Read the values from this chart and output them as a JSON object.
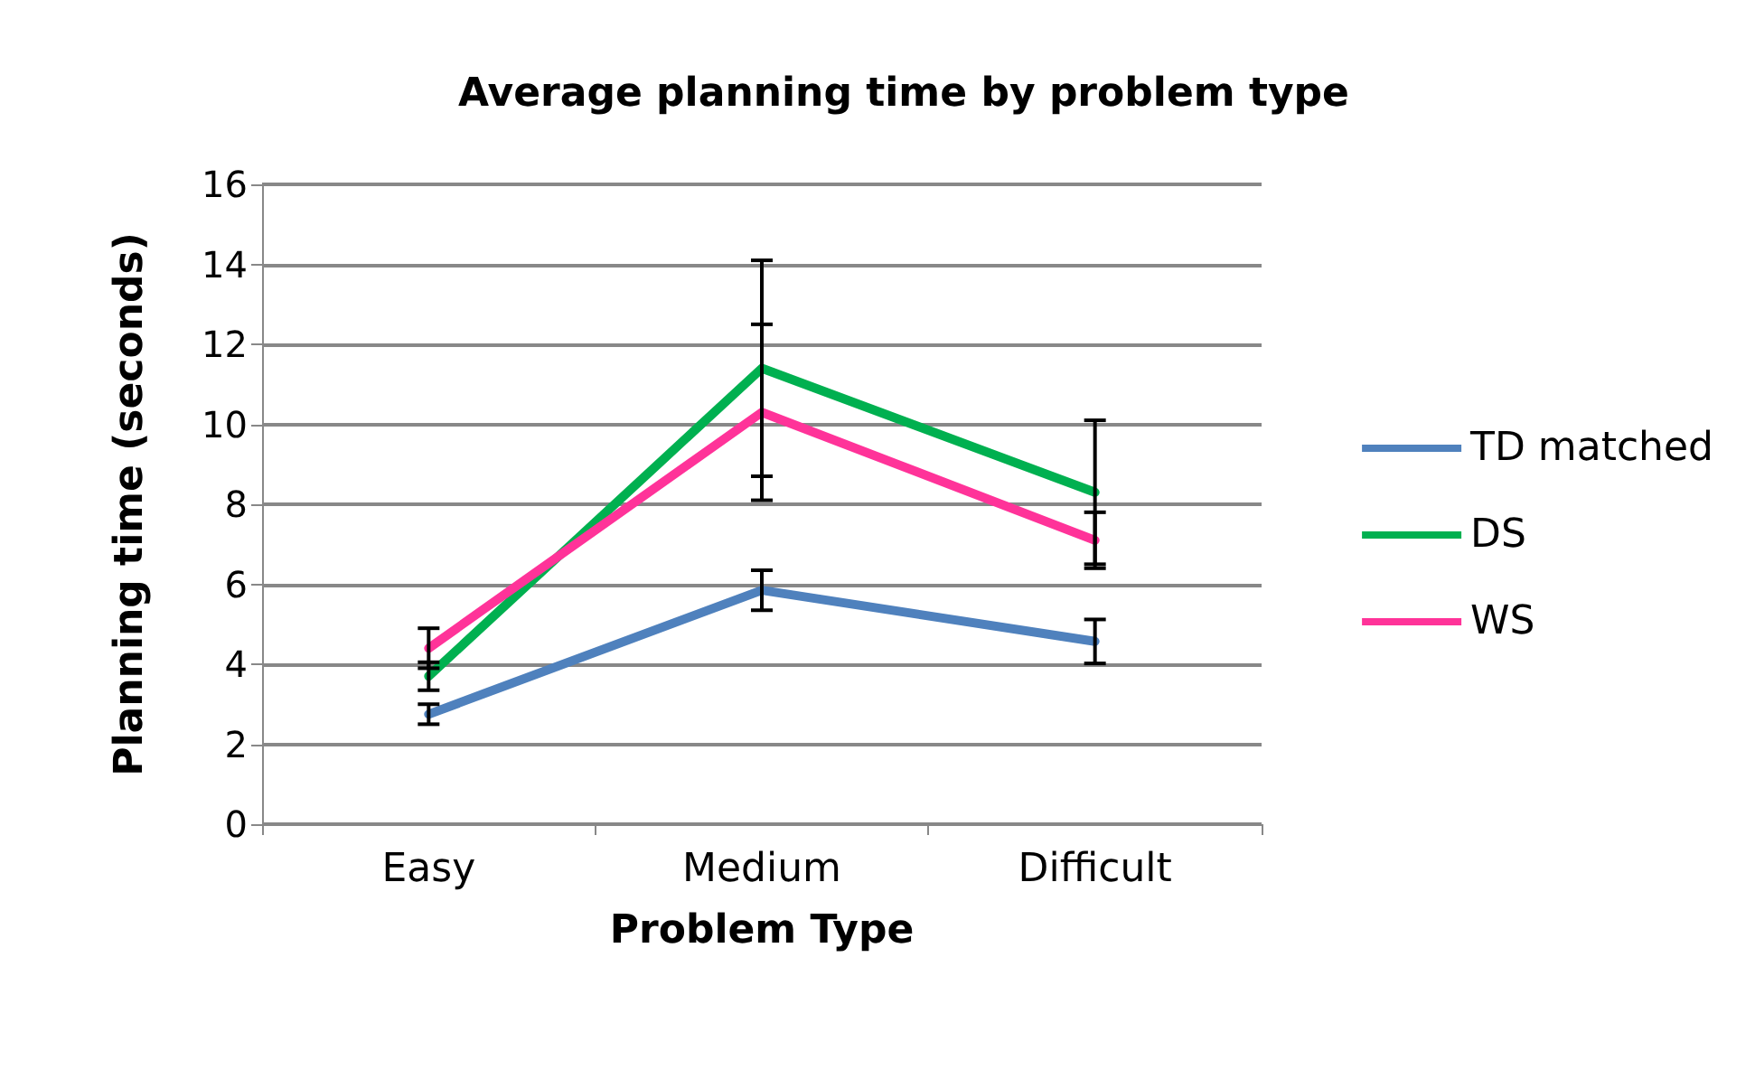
{
  "chart_data": {
    "type": "line",
    "title": "Average planning time by problem type",
    "xlabel": "Problem Type",
    "ylabel": "Planning time (seconds)",
    "categories": [
      "Easy",
      "Medium",
      "Difficult"
    ],
    "series": [
      {
        "name": "TD matched",
        "color": "#4f81bd",
        "values": [
          2.75,
          5.85,
          4.57
        ],
        "errors": [
          0.25,
          0.5,
          0.55
        ]
      },
      {
        "name": "DS",
        "color": "#00b050",
        "values": [
          3.7,
          11.4,
          8.3
        ],
        "errors": [
          0.35,
          2.7,
          1.8
        ]
      },
      {
        "name": "WS",
        "color": "#ff3399",
        "values": [
          4.4,
          10.3,
          7.1
        ],
        "errors": [
          0.5,
          2.2,
          0.7
        ]
      }
    ],
    "ylim": [
      0,
      16
    ],
    "yticks": [
      0,
      2,
      4,
      6,
      8,
      10,
      12,
      14,
      16
    ],
    "grid": "y",
    "legend": "right",
    "marker": "none",
    "line_style": "solid"
  }
}
